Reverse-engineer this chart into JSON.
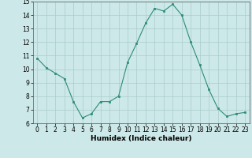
{
  "x": [
    0,
    1,
    2,
    3,
    4,
    5,
    6,
    7,
    8,
    9,
    10,
    11,
    12,
    13,
    14,
    15,
    16,
    17,
    18,
    19,
    20,
    21,
    22,
    23
  ],
  "y": [
    10.8,
    10.1,
    9.7,
    9.3,
    7.6,
    6.4,
    6.7,
    7.6,
    7.6,
    8.0,
    10.5,
    11.9,
    13.4,
    14.5,
    14.3,
    14.8,
    14.0,
    12.0,
    10.3,
    8.5,
    7.1,
    6.5,
    6.7,
    6.8
  ],
  "xlabel": "Humidex (Indice chaleur)",
  "ylim": [
    6,
    15
  ],
  "xlim_min": -0.5,
  "xlim_max": 23.5,
  "yticks": [
    6,
    7,
    8,
    9,
    10,
    11,
    12,
    13,
    14,
    15
  ],
  "xticks": [
    0,
    1,
    2,
    3,
    4,
    5,
    6,
    7,
    8,
    9,
    10,
    11,
    12,
    13,
    14,
    15,
    16,
    17,
    18,
    19,
    20,
    21,
    22,
    23
  ],
  "line_color": "#2e8b7a",
  "marker_color": "#2e8b7a",
  "bg_color": "#cce8e8",
  "grid_color": "#aacccc",
  "tick_fontsize": 5.5,
  "xlabel_fontsize": 6.5
}
